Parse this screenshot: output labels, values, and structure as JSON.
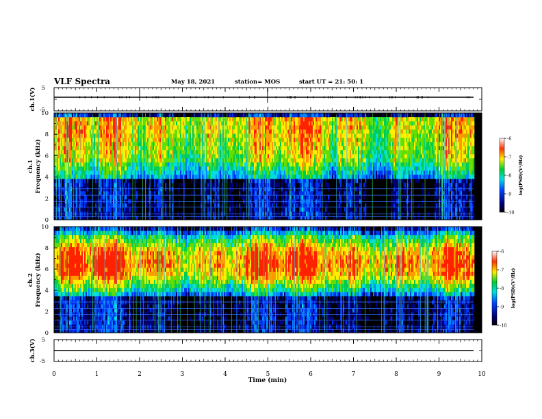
{
  "header": {
    "title": "VLF Spectra",
    "date": "May 18, 2021",
    "station": "station= MOS",
    "start_ut": "start  UT  =   21: 50: 1"
  },
  "chart_data": [
    {
      "type": "line",
      "ylabel": "ch.1(V)",
      "yticks": [
        "5",
        "-5"
      ],
      "ylim": [
        -5,
        5
      ]
    },
    {
      "type": "heatmap",
      "ylabel_line1": "ch.1",
      "ylabel_line2": "Frequency (kHz)",
      "yticks": [
        "0",
        "2",
        "4",
        "6",
        "8",
        "10"
      ],
      "ylim": [
        0,
        10
      ],
      "colorbar": {
        "label": "log(PSD)(V²/Hz)",
        "ticks": [
          "-6",
          "-7",
          "-8",
          "-9",
          "-10"
        ],
        "range": [
          -10,
          -6
        ]
      }
    },
    {
      "type": "heatmap",
      "ylabel_line1": "ch.2",
      "ylabel_line2": "Frequency (kHz)",
      "yticks": [
        "0",
        "2",
        "4",
        "6",
        "8",
        "10"
      ],
      "ylim": [
        0,
        10
      ],
      "colorbar": {
        "label": "log(PSD)(V²/Hz)",
        "ticks": [
          "-6",
          "-7",
          "-8",
          "-9",
          "-10"
        ],
        "range": [
          -10,
          -6
        ]
      }
    },
    {
      "type": "line",
      "ylabel": "ch.3(V)",
      "yticks": [
        "5",
        "-5"
      ],
      "ylim": [
        -5,
        5
      ]
    }
  ],
  "xaxis": {
    "label": "Time (min)",
    "ticks": [
      "0",
      "1",
      "2",
      "3",
      "4",
      "5",
      "6",
      "7",
      "8",
      "9",
      "10"
    ],
    "xlim": [
      0,
      10
    ]
  }
}
